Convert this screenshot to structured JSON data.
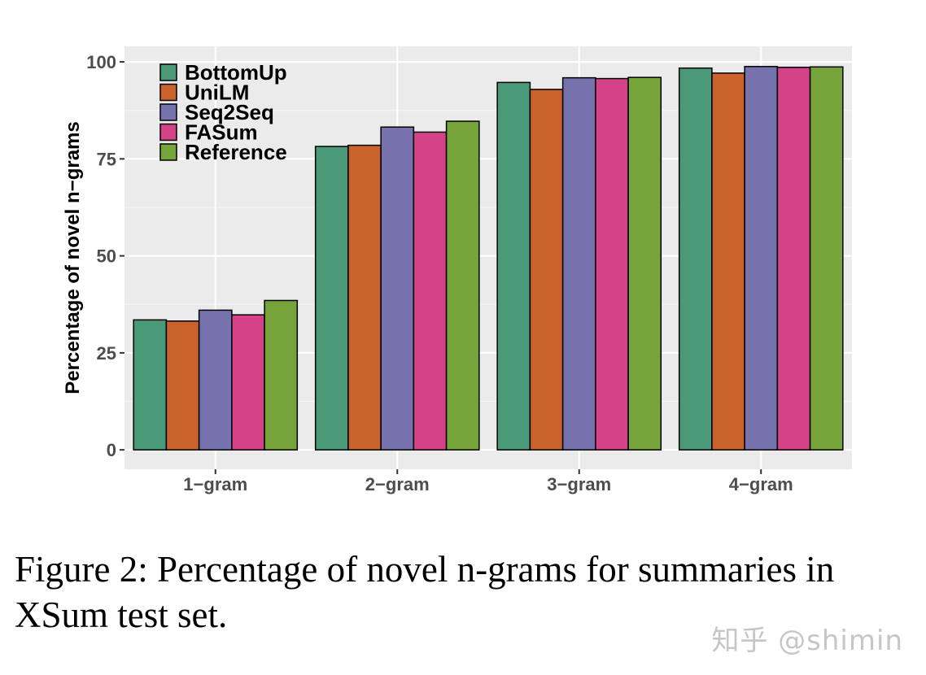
{
  "chart_data": {
    "type": "bar",
    "title": "",
    "xlabel": "",
    "ylabel": "Percentage of novel n−grams",
    "categories": [
      "1−gram",
      "2−gram",
      "3−gram",
      "4−gram"
    ],
    "series": [
      {
        "name": "BottomUp",
        "color": "#4a9a7a",
        "values": [
          33.5,
          78.2,
          94.7,
          98.4
        ]
      },
      {
        "name": "UniLM",
        "color": "#c9632b",
        "values": [
          33.2,
          78.5,
          92.9,
          97.1
        ]
      },
      {
        "name": "Seq2Seq",
        "color": "#7672ae",
        "values": [
          36.0,
          83.2,
          95.9,
          98.8
        ]
      },
      {
        "name": "FASum",
        "color": "#d44287",
        "values": [
          34.8,
          81.9,
          95.7,
          98.6
        ]
      },
      {
        "name": "Reference",
        "color": "#77a43a",
        "values": [
          38.5,
          84.7,
          96.0,
          98.7
        ]
      }
    ],
    "ylim": [
      -5,
      104
    ],
    "yticks": [
      0,
      25,
      50,
      75,
      100
    ],
    "grid": true,
    "legend": "top-left"
  },
  "caption": "Figure 2: Percentage of novel n-grams for summaries in XSum test set.",
  "watermark": "知乎 @shimin"
}
